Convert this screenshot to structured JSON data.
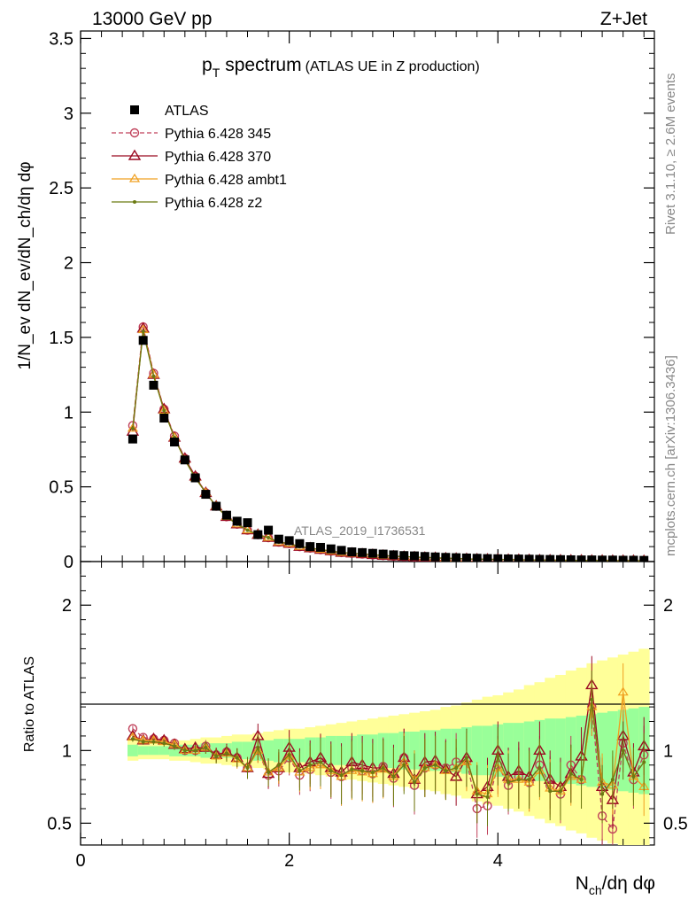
{
  "header": {
    "left": "13000 GeV pp",
    "right": "Z+Jet"
  },
  "side_text": {
    "rivet": "Rivet 3.1.10, ≥ 2.6M events",
    "mcplots": "mcplots.cern.ch [arXiv:1306.3436]"
  },
  "watermark": "ATLAS_2019_I1736531",
  "chart_data": [
    {
      "type": "scatter",
      "panel": "main",
      "title_main": "p",
      "title_sub": "T",
      "title_rest": "spectrum",
      "title_paren": "(ATLAS UE in Z production)",
      "ylabel": "1/N_ev dN_ev/dN_ch/dη dφ",
      "ylim": [
        0,
        3.55
      ],
      "y_ticks": [
        "0",
        "0.5",
        "1",
        "1.5",
        "2",
        "2.5",
        "3",
        "3.5"
      ],
      "y_tick_values": [
        0,
        0.5,
        1,
        1.5,
        2,
        2.5,
        3,
        3.5
      ],
      "x": [
        0.5,
        0.6,
        0.7,
        0.8,
        0.9,
        1.0,
        1.1,
        1.2,
        1.3,
        1.4,
        1.5,
        1.6,
        1.7,
        1.8,
        1.9,
        2.0,
        2.1,
        2.2,
        2.3,
        2.4,
        2.5,
        2.6,
        2.7,
        2.8,
        2.9,
        3.0,
        3.1,
        3.2,
        3.3,
        3.4,
        3.5,
        3.6,
        3.7,
        3.8,
        3.9,
        4.0,
        4.1,
        4.2,
        4.3,
        4.4,
        4.5,
        4.6,
        4.7,
        4.8,
        4.9,
        5.0,
        5.1,
        5.2,
        5.3,
        5.4
      ],
      "series": [
        {
          "name": "ATLAS",
          "color": "#000000",
          "marker": "square",
          "values": [
            0.82,
            1.48,
            1.18,
            0.96,
            0.8,
            0.68,
            0.56,
            0.45,
            0.37,
            0.31,
            0.27,
            0.26,
            0.18,
            0.21,
            0.15,
            0.14,
            0.12,
            0.1,
            0.095,
            0.085,
            0.075,
            0.065,
            0.06,
            0.055,
            0.05,
            0.045,
            0.04,
            0.038,
            0.034,
            0.031,
            0.028,
            0.026,
            0.024,
            0.022,
            0.02,
            0.019,
            0.018,
            0.017,
            0.016,
            0.015,
            0.014,
            0.013,
            0.012,
            0.011,
            0.011,
            0.01,
            0.01,
            0.009,
            0.009,
            0.008
          ]
        },
        {
          "name": "Pythia 6.428 345",
          "color": "#c0405a",
          "marker": "circle",
          "dashed": true,
          "values": [
            0.91,
            1.57,
            1.26,
            1.02,
            0.84,
            0.69,
            0.57,
            0.46,
            0.37,
            0.3,
            0.25,
            0.21,
            0.18,
            0.16,
            0.13,
            0.12,
            0.1,
            0.09,
            0.08,
            0.07,
            0.06,
            0.055,
            0.05,
            0.045,
            0.04,
            0.036,
            0.033,
            0.03,
            0.027,
            0.025,
            0.022,
            0.02,
            0.018,
            0.016,
            0.015,
            0.014,
            0.013,
            0.012,
            0.011,
            0.01,
            0.009,
            0.009,
            0.008,
            0.008,
            0.007,
            0.007,
            0.006,
            0.006,
            0.006,
            0.005
          ]
        },
        {
          "name": "Pythia 6.428 370",
          "color": "#9b0a22",
          "marker": "triangle",
          "values": [
            0.87,
            1.56,
            1.25,
            1.02,
            0.83,
            0.69,
            0.57,
            0.46,
            0.37,
            0.3,
            0.25,
            0.21,
            0.18,
            0.16,
            0.13,
            0.12,
            0.1,
            0.09,
            0.08,
            0.07,
            0.06,
            0.055,
            0.05,
            0.045,
            0.04,
            0.036,
            0.033,
            0.03,
            0.027,
            0.025,
            0.022,
            0.02,
            0.018,
            0.016,
            0.015,
            0.014,
            0.013,
            0.012,
            0.011,
            0.01,
            0.009,
            0.009,
            0.008,
            0.008,
            0.007,
            0.007,
            0.006,
            0.006,
            0.006,
            0.005
          ]
        },
        {
          "name": "Pythia 6.428 ambt1",
          "color": "#f0a020",
          "marker": "triangle-small",
          "values": [
            0.89,
            1.55,
            1.25,
            1.01,
            0.83,
            0.68,
            0.56,
            0.46,
            0.37,
            0.3,
            0.25,
            0.21,
            0.18,
            0.16,
            0.13,
            0.12,
            0.1,
            0.09,
            0.08,
            0.07,
            0.06,
            0.055,
            0.05,
            0.045,
            0.04,
            0.036,
            0.033,
            0.03,
            0.027,
            0.025,
            0.022,
            0.02,
            0.018,
            0.016,
            0.015,
            0.014,
            0.013,
            0.012,
            0.011,
            0.01,
            0.009,
            0.009,
            0.008,
            0.008,
            0.007,
            0.007,
            0.006,
            0.006,
            0.006,
            0.005
          ]
        },
        {
          "name": "Pythia 6.428 z2",
          "color": "#6b7a12",
          "marker": "dot",
          "values": [
            0.89,
            1.54,
            1.24,
            1.01,
            0.83,
            0.68,
            0.56,
            0.46,
            0.37,
            0.3,
            0.25,
            0.21,
            0.18,
            0.16,
            0.13,
            0.12,
            0.1,
            0.09,
            0.08,
            0.07,
            0.06,
            0.055,
            0.05,
            0.045,
            0.04,
            0.036,
            0.033,
            0.03,
            0.027,
            0.025,
            0.022,
            0.02,
            0.018,
            0.016,
            0.015,
            0.014,
            0.013,
            0.012,
            0.011,
            0.01,
            0.009,
            0.009,
            0.008,
            0.008,
            0.007,
            0.007,
            0.006,
            0.006,
            0.006,
            0.005
          ]
        }
      ]
    },
    {
      "type": "scatter",
      "panel": "ratio",
      "ylabel": "Ratio to ATLAS",
      "ylim": [
        0.35,
        2.3
      ],
      "y_ticks": [
        "0.5",
        "1",
        "2"
      ],
      "y_tick_values": [
        0.5,
        1,
        2
      ],
      "xlabel_main": "N",
      "xlabel_sub": "ch",
      "xlabel_rest": "/dη dφ",
      "xlim": [
        0,
        5.5
      ],
      "x_ticks": [
        "0",
        "2",
        "4"
      ],
      "x_tick_values": [
        0,
        2,
        4
      ],
      "x": [
        0.5,
        0.6,
        0.7,
        0.8,
        0.9,
        1.0,
        1.1,
        1.2,
        1.3,
        1.4,
        1.5,
        1.6,
        1.7,
        1.8,
        1.9,
        2.0,
        2.1,
        2.2,
        2.3,
        2.4,
        2.5,
        2.6,
        2.7,
        2.8,
        2.9,
        3.0,
        3.1,
        3.2,
        3.3,
        3.4,
        3.5,
        3.6,
        3.7,
        3.8,
        3.9,
        4.0,
        4.1,
        4.2,
        4.3,
        4.4,
        4.5,
        4.6,
        4.7,
        4.8,
        4.9,
        5.0,
        5.1,
        5.2,
        5.3,
        5.4
      ],
      "band_inner": [
        0.04,
        0.03,
        0.03,
        0.03,
        0.04,
        0.04,
        0.04,
        0.05,
        0.05,
        0.05,
        0.06,
        0.06,
        0.07,
        0.07,
        0.08,
        0.08,
        0.08,
        0.09,
        0.09,
        0.1,
        0.1,
        0.1,
        0.11,
        0.11,
        0.12,
        0.12,
        0.13,
        0.13,
        0.14,
        0.14,
        0.15,
        0.15,
        0.16,
        0.17,
        0.17,
        0.18,
        0.19,
        0.19,
        0.2,
        0.21,
        0.22,
        0.22,
        0.23,
        0.24,
        0.25,
        0.26,
        0.27,
        0.28,
        0.29,
        0.3
      ],
      "band_outer": [
        0.07,
        0.06,
        0.06,
        0.06,
        0.07,
        0.07,
        0.08,
        0.09,
        0.09,
        0.1,
        0.11,
        0.11,
        0.12,
        0.13,
        0.14,
        0.15,
        0.15,
        0.16,
        0.17,
        0.18,
        0.19,
        0.2,
        0.21,
        0.22,
        0.23,
        0.24,
        0.25,
        0.26,
        0.27,
        0.28,
        0.3,
        0.31,
        0.33,
        0.35,
        0.37,
        0.38,
        0.4,
        0.42,
        0.45,
        0.47,
        0.5,
        0.52,
        0.55,
        0.57,
        0.6,
        0.62,
        0.64,
        0.66,
        0.68,
        0.7
      ],
      "series": [
        {
          "name": "Pythia 6.428 345",
          "color": "#c0405a",
          "marker": "circle",
          "dashed": true,
          "values": [
            1.15,
            1.09,
            1.08,
            1.07,
            1.05,
            1.0,
            1.0,
            1.03,
            0.97,
            0.99,
            0.95,
            0.88,
            1.0,
            0.83,
            0.86,
            0.95,
            0.83,
            0.87,
            0.92,
            0.85,
            0.82,
            0.88,
            0.86,
            0.84,
            0.89,
            0.81,
            0.95,
            0.76,
            0.88,
            0.9,
            0.88,
            0.92,
            0.93,
            0.6,
            0.62,
            0.9,
            0.76,
            0.82,
            0.78,
            0.9,
            0.76,
            0.7,
            0.9,
            0.8,
            1.3,
            0.55,
            0.46,
            1.05,
            0.8,
            0.97
          ]
        },
        {
          "name": "Pythia 6.428 370",
          "color": "#9b0a22",
          "marker": "triangle",
          "values": [
            1.1,
            1.07,
            1.08,
            1.07,
            1.04,
            1.01,
            1.02,
            1.02,
            0.97,
            0.99,
            0.95,
            0.88,
            1.1,
            0.84,
            0.88,
            1.02,
            0.88,
            0.92,
            0.95,
            0.88,
            0.85,
            0.92,
            0.9,
            0.88,
            0.88,
            0.84,
            0.95,
            0.8,
            0.92,
            0.93,
            0.87,
            0.82,
            0.95,
            0.7,
            0.75,
            1.0,
            0.82,
            0.86,
            0.82,
            1.0,
            0.8,
            0.75,
            0.84,
            0.96,
            1.45,
            0.75,
            0.66,
            1.1,
            0.85,
            1.03
          ]
        },
        {
          "name": "Pythia 6.428 ambt1",
          "color": "#f0a020",
          "marker": "triangle-small",
          "values": [
            1.09,
            1.07,
            1.07,
            1.06,
            1.04,
            1.0,
            1.0,
            1.02,
            0.96,
            0.98,
            0.94,
            0.88,
            1.0,
            0.85,
            0.88,
            0.96,
            0.85,
            0.88,
            0.9,
            0.86,
            0.82,
            0.86,
            0.85,
            0.84,
            0.87,
            0.82,
            0.92,
            0.8,
            0.88,
            0.9,
            0.86,
            0.88,
            0.92,
            0.72,
            0.7,
            0.88,
            0.8,
            0.8,
            0.78,
            0.86,
            0.74,
            0.72,
            0.82,
            0.8,
            1.3,
            0.78,
            0.76,
            1.4,
            0.82,
            0.75
          ]
        },
        {
          "name": "Pythia 6.428 z2",
          "color": "#6b7a12",
          "marker": "dot",
          "values": [
            1.08,
            1.06,
            1.06,
            1.05,
            1.03,
            1.0,
            1.0,
            1.02,
            0.96,
            0.98,
            0.95,
            0.88,
            1.02,
            0.85,
            0.9,
            0.97,
            0.86,
            0.9,
            0.92,
            0.86,
            0.83,
            0.87,
            0.86,
            0.85,
            0.88,
            0.82,
            0.9,
            0.78,
            0.88,
            0.9,
            0.86,
            0.88,
            0.95,
            0.7,
            0.68,
            0.96,
            0.78,
            0.8,
            0.8,
            0.88,
            0.72,
            0.72,
            0.84,
            0.8,
            1.35,
            0.7,
            0.8,
            1.0,
            0.82,
            0.92
          ]
        }
      ]
    }
  ]
}
